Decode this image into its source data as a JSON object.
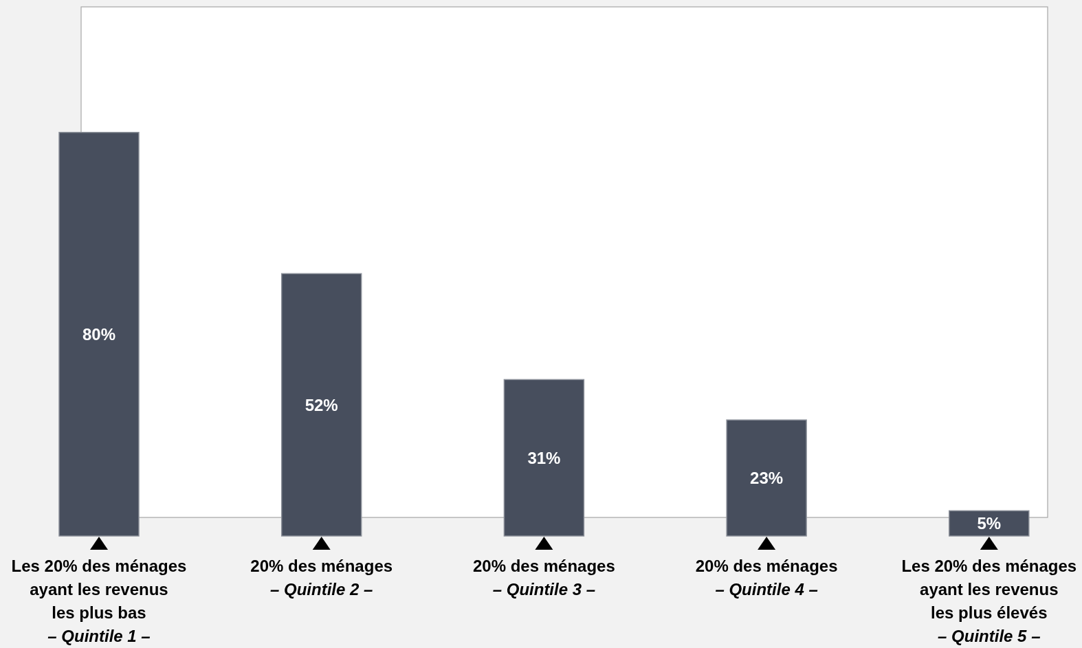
{
  "chart_data": {
    "type": "bar",
    "categories": [
      "Les 20% des ménages\nayant les revenus\nles plus bas\n– Quintile 1 –",
      "20% des ménages\n– Quintile 2 –",
      "20% des ménages\n– Quintile 3 –",
      "20% des ménages\n– Quintile 4 –",
      "Les 20% des ménages\nayant les revenus\nles plus élevés\n– Quintile 5 –"
    ],
    "values": [
      80,
      52,
      31,
      23,
      5
    ],
    "value_labels": [
      "80%",
      "52%",
      "31%",
      "23%",
      "5%"
    ],
    "color": "#474e5d"
  }
}
